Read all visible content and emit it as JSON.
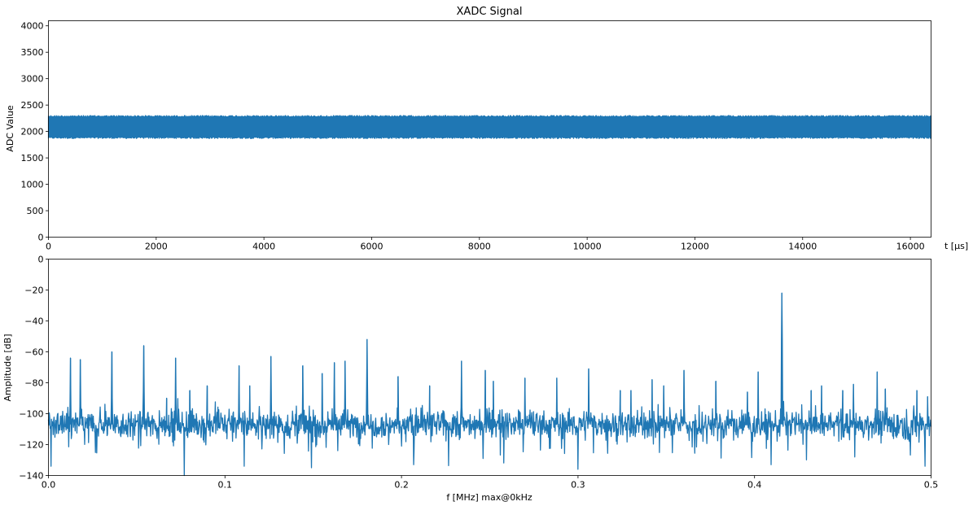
{
  "chart_data": [
    {
      "type": "line",
      "title": "XADC Signal",
      "xlabel": "t [$\\mu s$]",
      "xlabel_display": "t [μs]",
      "ylabel": "ADC Value",
      "xlim": [
        0,
        16384
      ],
      "ylim": [
        0,
        4096
      ],
      "xticks": [
        0,
        2000,
        4000,
        6000,
        8000,
        10000,
        12000,
        14000,
        16000
      ],
      "yticks": [
        0,
        500,
        1000,
        1500,
        2000,
        2500,
        3000,
        3500,
        4000
      ],
      "series": [
        {
          "color": "#1f77b4",
          "envelope_min": 1860,
          "envelope_max": 2310,
          "mean": 2085,
          "samples": 16384
        }
      ],
      "grid": false
    },
    {
      "type": "line",
      "title": "",
      "xlabel": "f [MHz] max@0kHz",
      "ylabel": "Amplitude [dB]",
      "xlim": [
        0,
        0.5
      ],
      "ylim": [
        -140,
        0
      ],
      "xticks": [
        0.0,
        0.1,
        0.2,
        0.3,
        0.4,
        0.5
      ],
      "yticks": [
        0,
        -20,
        -40,
        -60,
        -80,
        -100,
        -120,
        -140
      ],
      "noise_floor_db": -107,
      "series": [
        {
          "color": "#1f77b4"
        }
      ],
      "peaks": [
        {
          "f": 0.0125,
          "db": -64
        },
        {
          "f": 0.018,
          "db": -65
        },
        {
          "f": 0.036,
          "db": -60
        },
        {
          "f": 0.054,
          "db": -56
        },
        {
          "f": 0.072,
          "db": -64
        },
        {
          "f": 0.067,
          "db": -90
        },
        {
          "f": 0.08,
          "db": -85
        },
        {
          "f": 0.09,
          "db": -82
        },
        {
          "f": 0.108,
          "db": -69
        },
        {
          "f": 0.114,
          "db": -82
        },
        {
          "f": 0.126,
          "db": -63
        },
        {
          "f": 0.144,
          "db": -69
        },
        {
          "f": 0.155,
          "db": -74
        },
        {
          "f": 0.162,
          "db": -67
        },
        {
          "f": 0.168,
          "db": -66
        },
        {
          "f": 0.1805,
          "db": -52
        },
        {
          "f": 0.198,
          "db": -76
        },
        {
          "f": 0.216,
          "db": -82
        },
        {
          "f": 0.234,
          "db": -66
        },
        {
          "f": 0.2475,
          "db": -72
        },
        {
          "f": 0.252,
          "db": -79
        },
        {
          "f": 0.27,
          "db": -77
        },
        {
          "f": 0.288,
          "db": -77
        },
        {
          "f": 0.306,
          "db": -71
        },
        {
          "f": 0.324,
          "db": -85
        },
        {
          "f": 0.33,
          "db": -85
        },
        {
          "f": 0.342,
          "db": -78
        },
        {
          "f": 0.3485,
          "db": -82
        },
        {
          "f": 0.36,
          "db": -72
        },
        {
          "f": 0.378,
          "db": -79
        },
        {
          "f": 0.396,
          "db": -86
        },
        {
          "f": 0.402,
          "db": -73
        },
        {
          "f": 0.4155,
          "db": -22
        },
        {
          "f": 0.432,
          "db": -85
        },
        {
          "f": 0.438,
          "db": -82
        },
        {
          "f": 0.45,
          "db": -85
        },
        {
          "f": 0.456,
          "db": -81
        },
        {
          "f": 0.4695,
          "db": -73
        },
        {
          "f": 0.474,
          "db": -84
        },
        {
          "f": 0.492,
          "db": -85
        },
        {
          "f": 0.498,
          "db": -89
        }
      ],
      "grid": false
    }
  ]
}
